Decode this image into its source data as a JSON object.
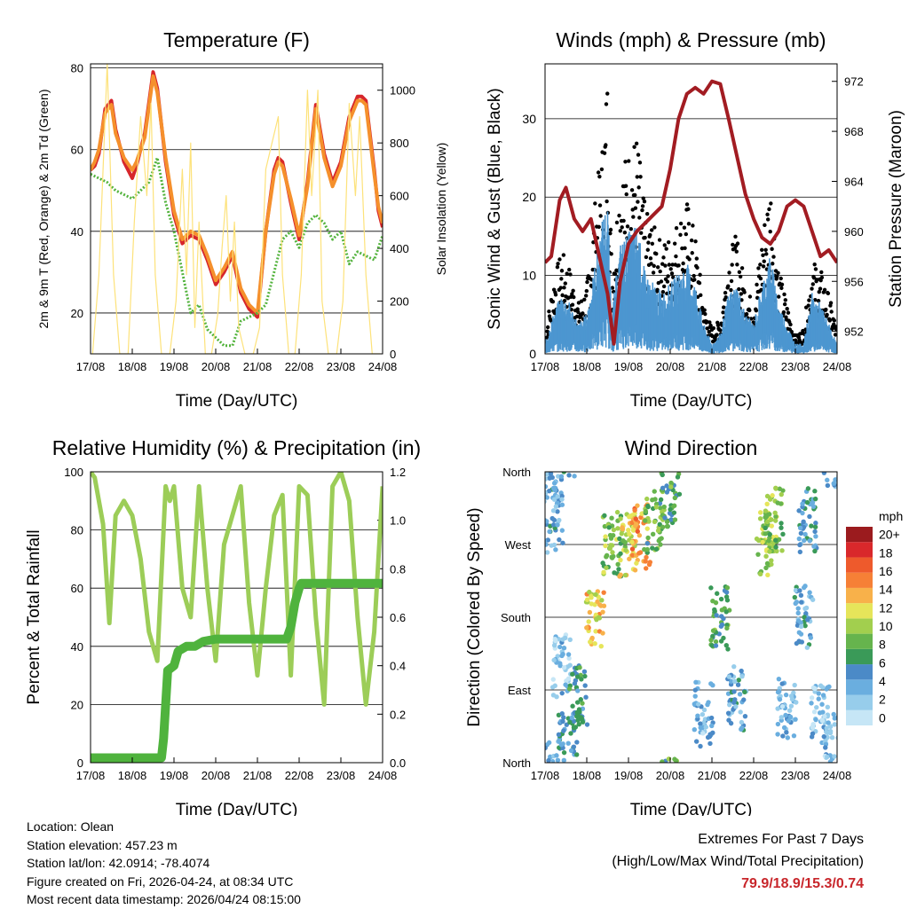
{
  "colors": {
    "t2m": "#d7262b",
    "t9m": "#f5902c",
    "td": "#53b33d",
    "solar": "#fde27a",
    "gust": "#000000",
    "wind": "#4c96d0",
    "pressure": "#a21c22",
    "rh": "#9ccd58",
    "precip": "#4fb33d",
    "extremes": "#c8262b",
    "speed_scale": [
      "#c6e6f6",
      "#97cdeb",
      "#6aaedf",
      "#4b8ac7",
      "#3a9a58",
      "#66b44d",
      "#a2cf4e",
      "#e6e55a",
      "#f8b14a",
      "#f68036",
      "#ee5a2c",
      "#d9282b",
      "#9b1b1e"
    ]
  },
  "chart_data": [
    {
      "id": "temperature",
      "type": "line",
      "title": "Temperature (F)",
      "xlabel": "Time (Day/UTC)",
      "ylabel_left": "2m & 9m T (Red, Orange) & 2m Td (Green)",
      "ylabel_right": "Solar Insolation (Yellow)",
      "x_ticks": [
        "17/08",
        "18/08",
        "19/08",
        "20/08",
        "21/08",
        "22/08",
        "23/08",
        "24/08"
      ],
      "x_range": [
        0,
        7
      ],
      "ylim_left": [
        10,
        81
      ],
      "yticks_left": [
        20,
        40,
        60,
        80
      ],
      "ylim_right": [
        0,
        1100
      ],
      "yticks_right": [
        0,
        200,
        400,
        600,
        800,
        1000
      ],
      "series": [
        {
          "name": "2m T",
          "axis": "left",
          "color_key": "t2m",
          "x": [
            0,
            0.1,
            0.2,
            0.35,
            0.5,
            0.6,
            0.8,
            1.0,
            1.1,
            1.3,
            1.5,
            1.6,
            1.8,
            2.0,
            2.2,
            2.4,
            2.6,
            2.8,
            3.0,
            3.2,
            3.4,
            3.6,
            3.8,
            4.0,
            4.2,
            4.4,
            4.5,
            4.6,
            4.8,
            5.0,
            5.2,
            5.4,
            5.6,
            5.8,
            6.0,
            6.2,
            6.4,
            6.5,
            6.6,
            6.8,
            6.9,
            7.0
          ],
          "values": [
            55,
            56,
            59,
            70,
            72,
            65,
            57,
            53,
            56,
            64,
            79,
            75,
            57,
            44,
            37,
            39,
            38,
            33,
            27,
            30,
            34,
            25,
            21,
            19,
            40,
            55,
            58,
            57,
            47,
            38,
            52,
            71,
            59,
            52,
            57,
            68,
            73,
            73,
            72,
            55,
            45,
            41
          ]
        },
        {
          "name": "9m T",
          "axis": "left",
          "color_key": "t9m",
          "x": [
            0,
            0.1,
            0.2,
            0.35,
            0.5,
            0.6,
            0.8,
            1.0,
            1.1,
            1.3,
            1.5,
            1.6,
            1.8,
            2.0,
            2.2,
            2.4,
            2.6,
            2.8,
            3.0,
            3.2,
            3.4,
            3.6,
            3.8,
            4.0,
            4.2,
            4.4,
            4.5,
            4.6,
            4.8,
            5.0,
            5.2,
            5.4,
            5.6,
            5.8,
            6.0,
            6.2,
            6.4,
            6.5,
            6.6,
            6.8,
            6.9,
            7.0
          ],
          "values": [
            55,
            57,
            60,
            69,
            71,
            64,
            58,
            55,
            57,
            63,
            78,
            74,
            58,
            45,
            38,
            40,
            39,
            34,
            28,
            31,
            35,
            26,
            22,
            20,
            40,
            54,
            57,
            56,
            48,
            39,
            51,
            70,
            58,
            51,
            56,
            67,
            72,
            72,
            71,
            54,
            46,
            42
          ]
        },
        {
          "name": "2m Td",
          "axis": "left",
          "color_key": "td",
          "x": [
            0,
            0.2,
            0.4,
            0.6,
            0.8,
            1.0,
            1.2,
            1.4,
            1.6,
            1.8,
            2.0,
            2.2,
            2.4,
            2.6,
            2.8,
            3.0,
            3.2,
            3.4,
            3.6,
            3.8,
            4.0,
            4.2,
            4.4,
            4.6,
            4.8,
            5.0,
            5.2,
            5.4,
            5.6,
            5.8,
            6.0,
            6.2,
            6.4,
            6.6,
            6.8,
            7.0
          ],
          "values": [
            54,
            53,
            52,
            50,
            49,
            48,
            50,
            52,
            58,
            47,
            40,
            30,
            20,
            22,
            16,
            14,
            12,
            12,
            18,
            19,
            20,
            22,
            30,
            38,
            40,
            36,
            42,
            44,
            42,
            38,
            40,
            32,
            35,
            34,
            33,
            39
          ]
        },
        {
          "name": "Solar Insolation",
          "axis": "right",
          "color_key": "solar",
          "x": [
            0.05,
            0.2,
            0.4,
            0.55,
            0.7,
            0.9,
            1.05,
            1.2,
            1.35,
            1.45,
            1.55,
            1.7,
            1.9,
            2.05,
            2.2,
            2.3,
            2.4,
            2.5,
            2.6,
            2.75,
            2.9,
            3.05,
            3.15,
            3.25,
            3.35,
            3.45,
            3.55,
            3.7,
            3.9,
            4.05,
            4.2,
            4.35,
            4.5,
            4.6,
            4.75,
            4.9,
            5.05,
            5.2,
            5.3,
            5.45,
            5.55,
            5.7,
            5.9,
            6.05,
            6.2,
            6.35,
            6.45,
            6.6,
            6.75,
            6.95
          ],
          "values": [
            0,
            300,
            1100,
            300,
            0,
            0,
            500,
            900,
            600,
            950,
            300,
            0,
            0,
            200,
            700,
            300,
            800,
            100,
            500,
            0,
            0,
            150,
            400,
            600,
            200,
            500,
            100,
            0,
            0,
            100,
            700,
            800,
            900,
            300,
            0,
            0,
            300,
            1000,
            600,
            1000,
            200,
            0,
            0,
            200,
            950,
            600,
            900,
            300,
            0,
            0
          ]
        }
      ]
    },
    {
      "id": "winds",
      "type": "scatter",
      "title": "Winds (mph) & Pressure (mb)",
      "xlabel": "Time (Day/UTC)",
      "ylabel_left": "Sonic Wind & Gust (Blue, Black)",
      "ylabel_right": "Station Pressure (Maroon)",
      "x_ticks": [
        "17/08",
        "18/08",
        "19/08",
        "20/08",
        "21/08",
        "22/08",
        "23/08",
        "24/08"
      ],
      "x_range": [
        0,
        7
      ],
      "ylim_left": [
        0,
        37
      ],
      "yticks_left": [
        0,
        10,
        20,
        30
      ],
      "ylim_right": [
        950.2,
        973.4
      ],
      "yticks_right": [
        952,
        956,
        960,
        964,
        968,
        972
      ],
      "series": [
        {
          "name": "Gust",
          "axis": "left",
          "color_key": "gust",
          "x": [
            0,
            0.2,
            0.4,
            0.6,
            0.8,
            1.0,
            1.2,
            1.4,
            1.5,
            1.6,
            1.8,
            2.0,
            2.2,
            2.4,
            2.6,
            2.8,
            3.0,
            3.2,
            3.4,
            3.6,
            3.8,
            4.0,
            4.2,
            4.4,
            4.6,
            4.8,
            5.0,
            5.2,
            5.4,
            5.6,
            5.8,
            6.0,
            6.2,
            6.4,
            6.6,
            6.8,
            7.0
          ],
          "values": [
            2,
            9,
            12,
            10,
            6,
            8,
            18,
            26,
            34,
            10,
            22,
            24,
            26,
            17,
            15,
            13,
            14,
            16,
            18,
            14,
            6,
            3,
            4,
            12,
            14,
            8,
            6,
            14,
            21,
            10,
            6,
            2,
            3,
            11,
            10,
            7,
            3
          ]
        },
        {
          "name": "Sonic Wind",
          "axis": "left",
          "color_key": "wind",
          "x": [
            0,
            0.2,
            0.4,
            0.6,
            0.8,
            1.0,
            1.2,
            1.4,
            1.5,
            1.6,
            1.8,
            2.0,
            2.2,
            2.4,
            2.6,
            2.8,
            3.0,
            3.2,
            3.4,
            3.6,
            3.8,
            4.0,
            4.2,
            4.4,
            4.6,
            4.8,
            5.0,
            5.2,
            5.4,
            5.6,
            5.8,
            6.0,
            6.2,
            6.4,
            6.6,
            6.8,
            7.0
          ],
          "values": [
            1,
            4,
            6,
            5,
            3,
            4,
            9,
            14,
            15,
            4,
            11,
            12,
            13,
            8,
            7,
            6,
            7,
            8,
            9,
            7,
            3,
            1,
            2,
            6,
            7,
            4,
            3,
            7,
            10,
            5,
            3,
            1,
            1,
            6,
            5,
            3,
            1
          ]
        },
        {
          "name": "Station Pressure",
          "axis": "right",
          "color_key": "pressure",
          "x": [
            0,
            0.15,
            0.35,
            0.5,
            0.7,
            0.9,
            1.1,
            1.3,
            1.5,
            1.65,
            1.8,
            2.0,
            2.2,
            2.5,
            2.8,
            3.0,
            3.2,
            3.4,
            3.6,
            3.8,
            4.0,
            4.2,
            4.4,
            4.6,
            4.8,
            5.0,
            5.2,
            5.4,
            5.6,
            5.8,
            6.0,
            6.2,
            6.4,
            6.6,
            6.8,
            7.0
          ],
          "values": [
            957.5,
            958,
            962.5,
            963.5,
            961,
            960,
            961,
            958,
            955,
            951,
            956,
            959,
            960,
            961,
            962,
            965,
            969,
            971,
            971.5,
            971,
            972,
            971.8,
            969,
            966,
            963,
            961,
            959.5,
            959,
            960,
            962,
            962.5,
            962,
            960,
            958,
            958.5,
            957.5
          ]
        }
      ]
    },
    {
      "id": "humidity",
      "type": "line",
      "title": "Relative Humidity (%) & Precipitation (in)",
      "xlabel": "Time (Day/UTC)",
      "ylabel_left": "Percent & Total Rainfall",
      "x_ticks": [
        "17/08",
        "18/08",
        "19/08",
        "20/08",
        "21/08",
        "22/08",
        "23/08",
        "24/08"
      ],
      "x_range": [
        0,
        7
      ],
      "ylim_left": [
        0,
        100
      ],
      "yticks_left": [
        0,
        20,
        40,
        60,
        80,
        100
      ],
      "ylim_right": [
        0,
        1.2
      ],
      "yticks_right": [
        "0.0",
        "0.2",
        "0.4",
        "0.6",
        "0.8",
        "1.0",
        "1.2"
      ],
      "series": [
        {
          "name": "Relative Humidity",
          "axis": "left",
          "color_key": "rh",
          "x": [
            0,
            0.1,
            0.3,
            0.45,
            0.6,
            0.8,
            1.0,
            1.2,
            1.4,
            1.6,
            1.8,
            1.9,
            2.0,
            2.2,
            2.4,
            2.6,
            2.8,
            3.0,
            3.2,
            3.4,
            3.6,
            3.8,
            4.0,
            4.2,
            4.4,
            4.6,
            4.8,
            5.0,
            5.2,
            5.4,
            5.6,
            5.8,
            6.0,
            6.2,
            6.4,
            6.6,
            6.8,
            7.0
          ],
          "values": [
            100,
            98,
            82,
            48,
            85,
            90,
            85,
            70,
            45,
            35,
            95,
            90,
            95,
            60,
            50,
            95,
            60,
            35,
            75,
            85,
            95,
            55,
            30,
            60,
            85,
            92,
            30,
            95,
            92,
            50,
            20,
            95,
            100,
            90,
            50,
            20,
            45,
            95
          ]
        },
        {
          "name": "Total Rainfall",
          "axis": "right",
          "color_key": "precip",
          "x": [
            0,
            1.7,
            1.75,
            1.85,
            2.0,
            2.1,
            2.3,
            2.5,
            2.7,
            3.0,
            4.0,
            4.7,
            4.8,
            4.9,
            5.0,
            5.05,
            7.0
          ],
          "values": [
            0.02,
            0.02,
            0.1,
            0.38,
            0.4,
            0.46,
            0.48,
            0.48,
            0.5,
            0.51,
            0.51,
            0.51,
            0.56,
            0.66,
            0.72,
            0.74,
            0.74
          ]
        }
      ]
    },
    {
      "id": "wind_direction",
      "type": "scatter",
      "title": "Wind Direction",
      "xlabel": "Time (Day/UTC)",
      "ylabel_left": "Direction (Colored By Speed)",
      "x_ticks": [
        "17/08",
        "18/08",
        "19/08",
        "20/08",
        "21/08",
        "22/08",
        "23/08",
        "24/08"
      ],
      "x_range": [
        0,
        7
      ],
      "ylim_left": [
        0,
        360
      ],
      "yticks_labels": [
        "North",
        "East",
        "South",
        "West",
        "North"
      ],
      "yticks_values": [
        0,
        90,
        180,
        270,
        360
      ],
      "legend_title": "mph",
      "legend_labels": [
        "0",
        "2",
        "4",
        "6",
        "8",
        "10",
        "12",
        "14",
        "16",
        "18",
        "20+"
      ],
      "clusters": [
        {
          "x": 0.2,
          "dir": 300,
          "speed": 4
        },
        {
          "x": 0.1,
          "dir": 350,
          "speed": 3
        },
        {
          "x": 0.4,
          "dir": 120,
          "speed": 2
        },
        {
          "x": 0.55,
          "dir": 30,
          "speed": 5
        },
        {
          "x": 0.8,
          "dir": 80,
          "speed": 6
        },
        {
          "x": 1.2,
          "dir": 180,
          "speed": 12
        },
        {
          "x": 1.6,
          "dir": 270,
          "speed": 9
        },
        {
          "x": 2.0,
          "dir": 270,
          "speed": 11
        },
        {
          "x": 2.3,
          "dir": 280,
          "speed": 14
        },
        {
          "x": 2.6,
          "dir": 300,
          "speed": 8
        },
        {
          "x": 3.0,
          "dir": 330,
          "speed": 7
        },
        {
          "x": 3.8,
          "dir": 60,
          "speed": 3
        },
        {
          "x": 4.2,
          "dir": 180,
          "speed": 7
        },
        {
          "x": 4.6,
          "dir": 80,
          "speed": 4
        },
        {
          "x": 5.3,
          "dir": 270,
          "speed": 10
        },
        {
          "x": 5.5,
          "dir": 300,
          "speed": 9
        },
        {
          "x": 5.8,
          "dir": 70,
          "speed": 3
        },
        {
          "x": 6.2,
          "dir": 180,
          "speed": 4
        },
        {
          "x": 6.3,
          "dir": 300,
          "speed": 5
        },
        {
          "x": 6.6,
          "dir": 60,
          "speed": 2
        },
        {
          "x": 6.9,
          "dir": 20,
          "speed": 3
        }
      ]
    }
  ],
  "footer": {
    "location": "Location: Olean",
    "elevation": "Station elevation: 457.23 m",
    "latlon": "Station lat/lon: 42.0914; -78.4074",
    "created": "Figure created on Fri, 2026-04-24, at 08:34 UTC",
    "recent": "Most recent data timestamp: 2026/04/24 08:15:00"
  },
  "extremes": {
    "line1": "Extremes For Past 7 Days",
    "line2": "(High/Low/Max Wind/Total Precipitation)",
    "values": "79.9/18.9/15.3/0.74"
  }
}
